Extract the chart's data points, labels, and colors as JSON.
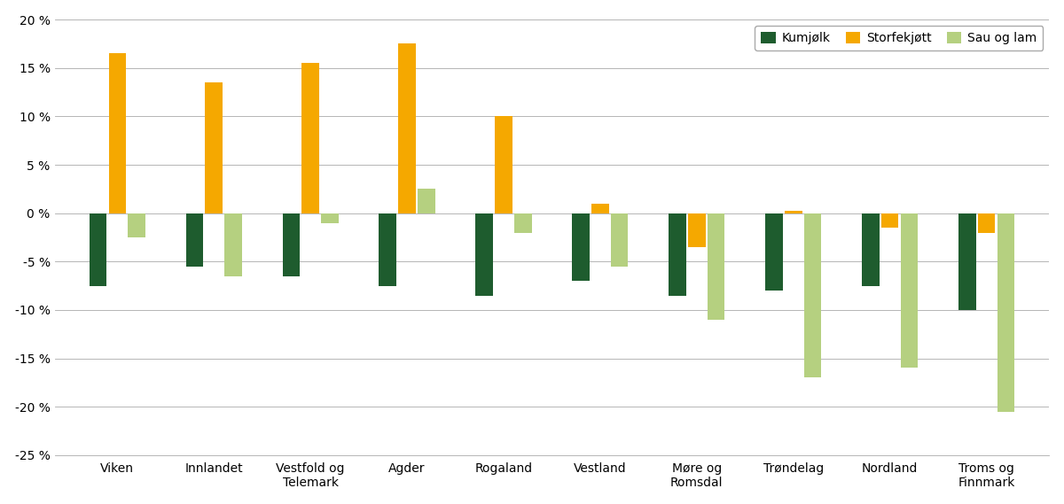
{
  "categories": [
    "Viken",
    "Innlandet",
    "Vestfold og\nTelemark",
    "Agder",
    "Rogaland",
    "Vestland",
    "Møre og\nRomsdal",
    "Trøndelag",
    "Nordland",
    "Troms og\nFinnmark"
  ],
  "kumjolk": [
    -7.5,
    -5.5,
    -6.5,
    -7.5,
    -8.5,
    -7.0,
    -8.5,
    -8.0,
    -7.5,
    -10.0
  ],
  "storfekjott": [
    16.5,
    13.5,
    15.5,
    17.5,
    10.0,
    1.0,
    -3.5,
    0.2,
    -1.5,
    -2.0
  ],
  "sau_og_lam": [
    -2.5,
    -6.5,
    -1.0,
    2.5,
    -2.0,
    -5.5,
    -11.0,
    -17.0,
    -16.0,
    -20.5
  ],
  "color_kumjolk": "#1e5c2e",
  "color_storfekjott": "#f5a800",
  "color_sau_og_lam": "#b5d080",
  "legend_labels": [
    "Kumjølk",
    "Storfekjøtt",
    "Sau og lam"
  ],
  "ylim": [
    -25,
    20
  ],
  "yticks": [
    -25,
    -20,
    -15,
    -10,
    -5,
    0,
    5,
    10,
    15,
    20
  ],
  "background_color": "#ffffff",
  "grid_color": "#aaaaaa",
  "bar_width": 0.18,
  "bar_gap": 0.02,
  "figsize": [
    12.0,
    5.69
  ],
  "dpi": 100
}
